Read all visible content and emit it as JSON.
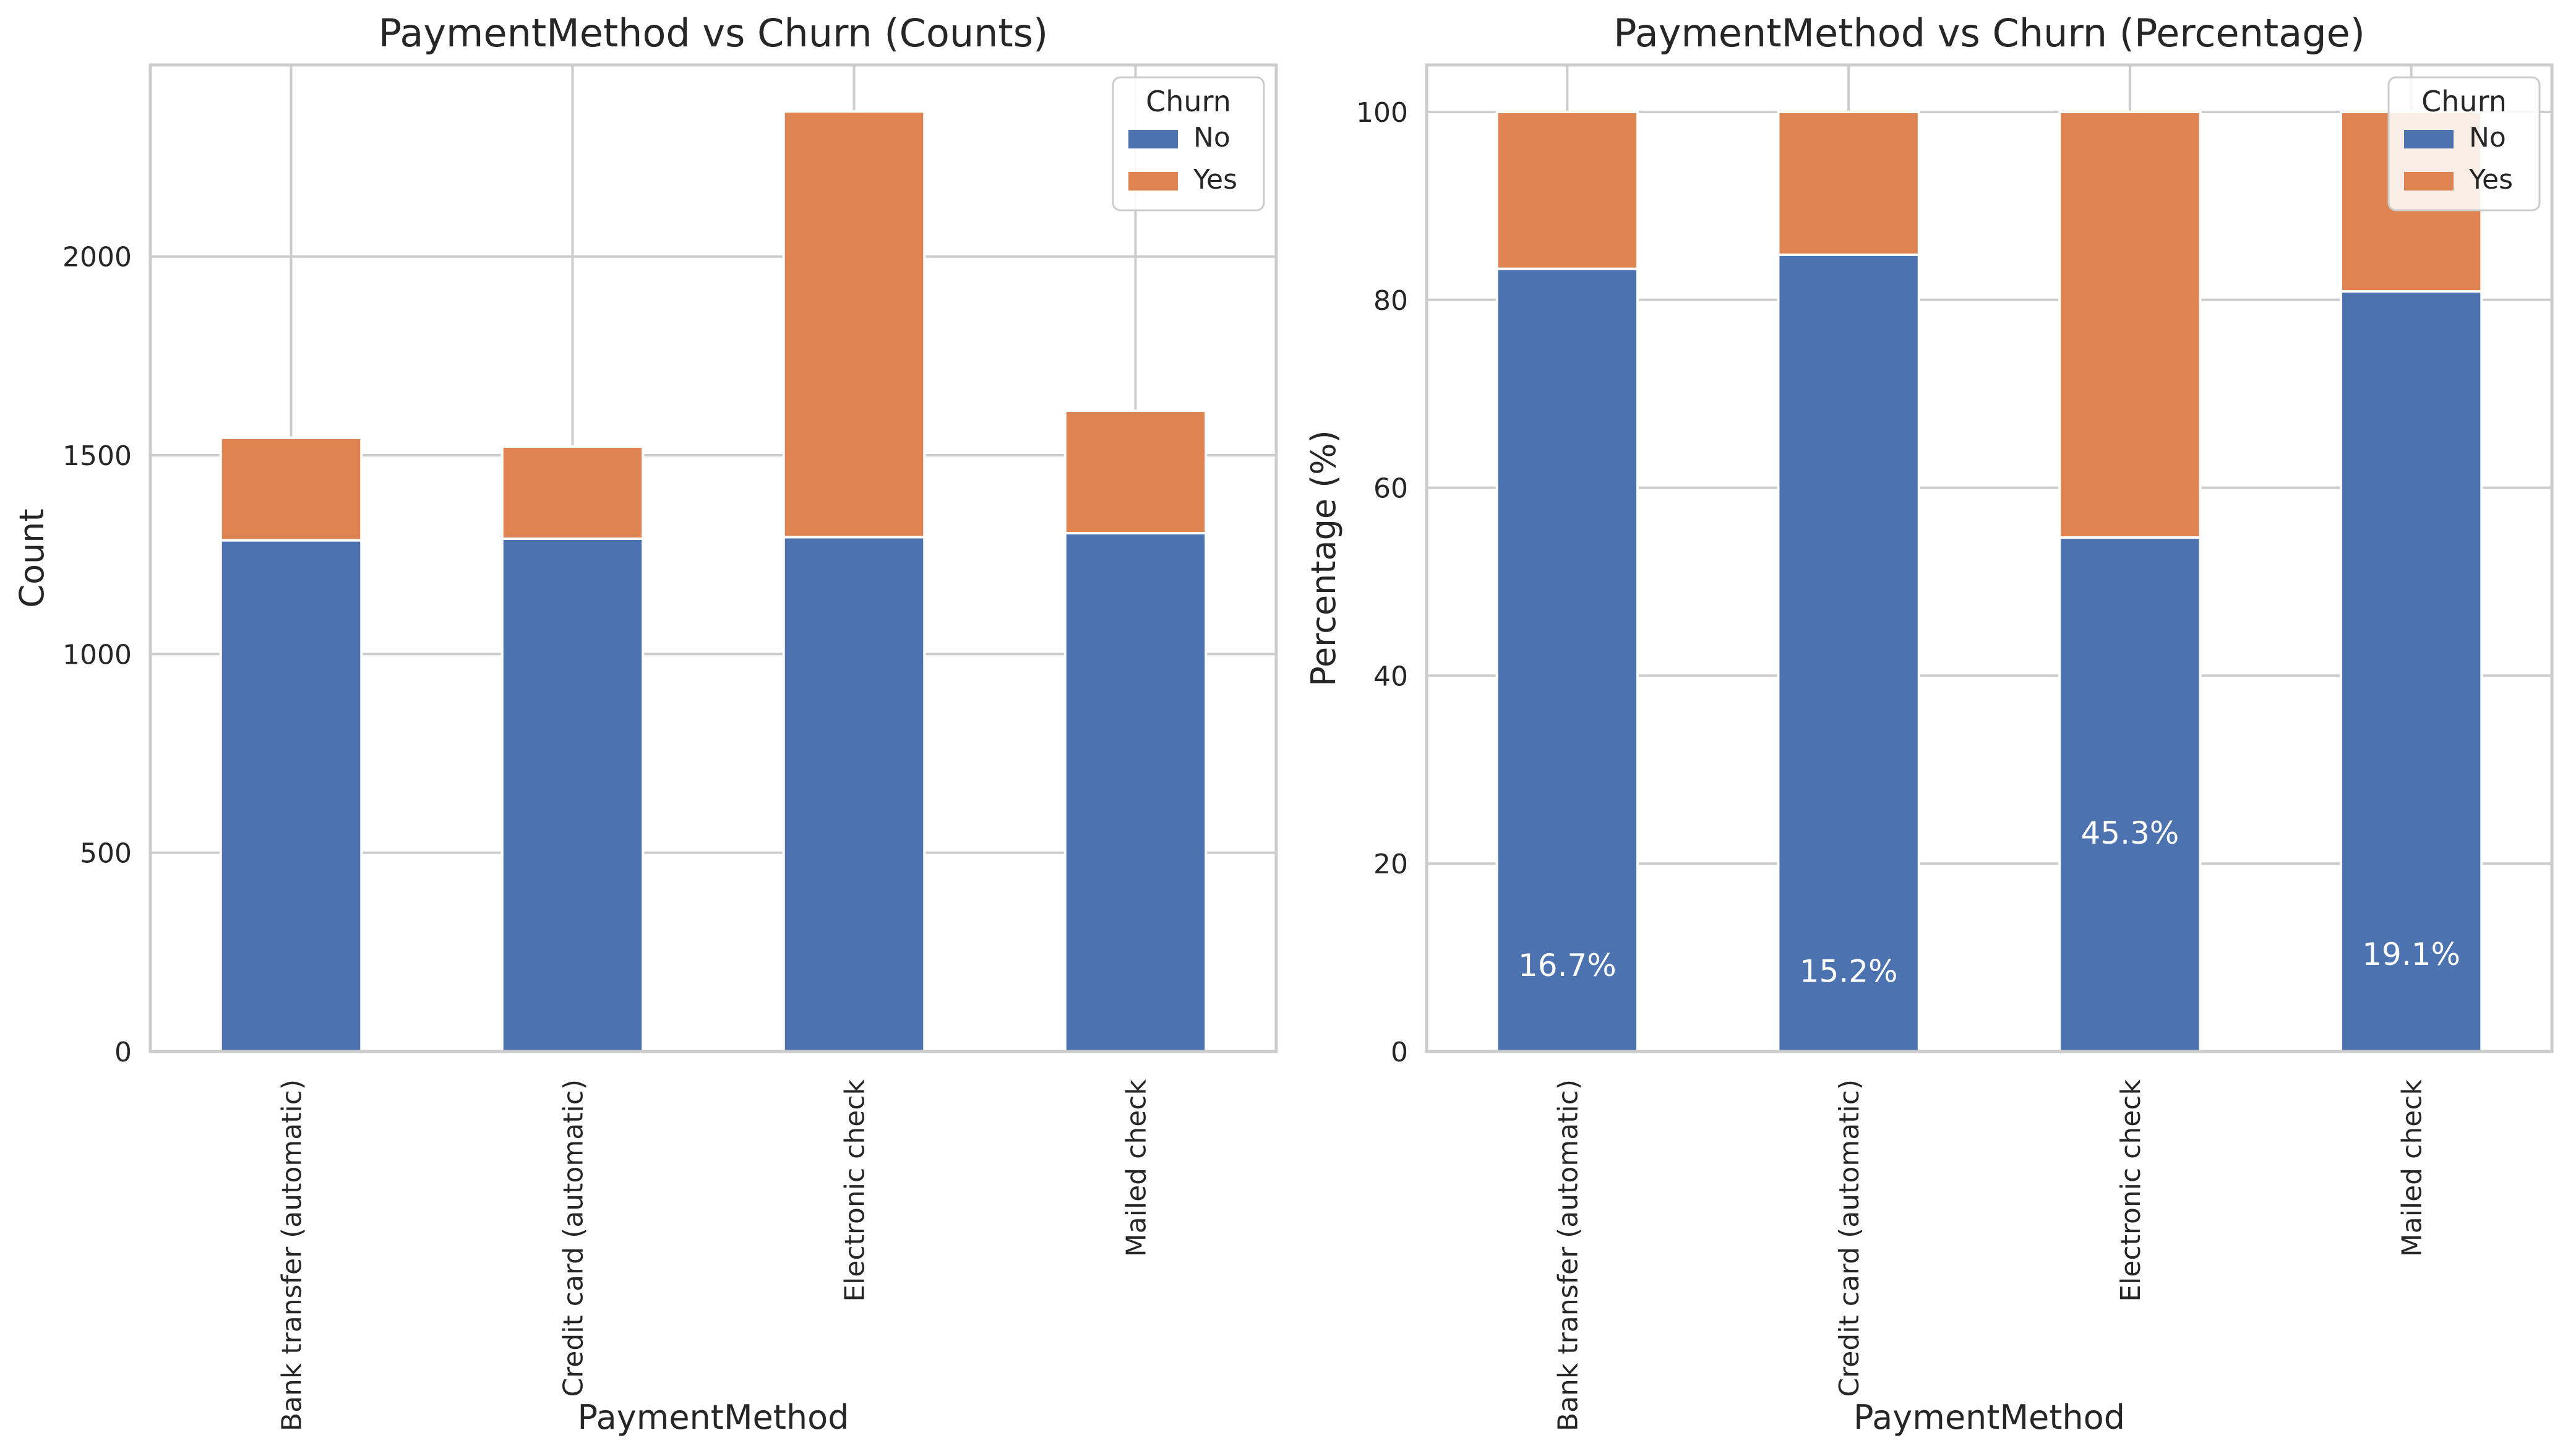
{
  "chart_data": [
    {
      "type": "bar",
      "stacked": true,
      "title": "PaymentMethod vs Churn (Counts)",
      "xlabel": "PaymentMethod",
      "ylabel": "Count",
      "categories": [
        "Bank transfer (automatic)",
        "Credit card (automatic)",
        "Electronic check",
        "Mailed check"
      ],
      "series": [
        {
          "name": "No",
          "color": "#4c72b0",
          "values": [
            1286,
            1290,
            1294,
            1304
          ]
        },
        {
          "name": "Yes",
          "color": "#dd8452",
          "values": [
            258,
            232,
            1071,
            308
          ]
        }
      ],
      "ylim": [
        0,
        2482
      ],
      "yticks": [
        0,
        500,
        1000,
        1500,
        2000
      ],
      "grid": true,
      "legend": {
        "title": "Churn",
        "position": "top-right"
      },
      "annotations": []
    },
    {
      "type": "bar",
      "stacked": true,
      "title": "PaymentMethod vs Churn (Percentage)",
      "xlabel": "PaymentMethod",
      "ylabel": "Percentage (%)",
      "categories": [
        "Bank transfer (automatic)",
        "Credit card (automatic)",
        "Electronic check",
        "Mailed check"
      ],
      "series": [
        {
          "name": "No",
          "color": "#4c72b0",
          "values": [
            83.3,
            84.8,
            54.7,
            80.9
          ]
        },
        {
          "name": "Yes",
          "color": "#dd8452",
          "values": [
            16.7,
            15.2,
            45.3,
            19.1
          ]
        }
      ],
      "ylim": [
        0,
        105
      ],
      "yticks": [
        0,
        20,
        40,
        60,
        80,
        100
      ],
      "grid": true,
      "legend": {
        "title": "Churn",
        "position": "top-right"
      },
      "annotations": [
        {
          "category": "Bank transfer (automatic)",
          "text": "16.7%",
          "y": 9.2
        },
        {
          "category": "Credit card (automatic)",
          "text": "15.2%",
          "y": 8.6
        },
        {
          "category": "Electronic check",
          "text": "45.3%",
          "y": 23.3
        },
        {
          "category": "Mailed check",
          "text": "19.1%",
          "y": 10.4
        }
      ]
    }
  ]
}
